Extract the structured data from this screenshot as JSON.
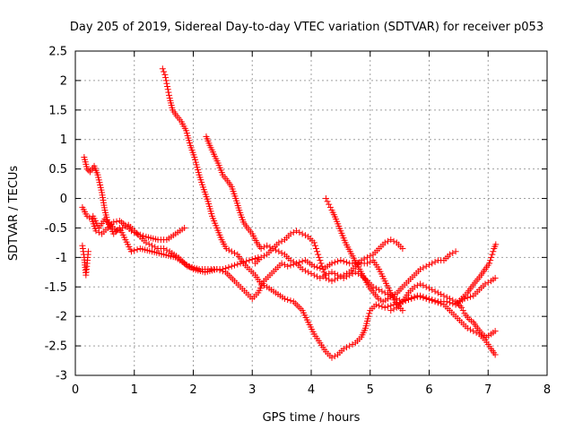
{
  "chart_data": {
    "type": "scatter",
    "title": "Day 205 of 2019, Sidereal Day-to-day VTEC variation (SDTVAR) for receiver p053",
    "xlabel": "GPS time / hours",
    "ylabel": "SDTVAR / TECUs",
    "xlim": [
      0,
      8
    ],
    "ylim": [
      -3,
      2.5
    ],
    "xticks": [
      "0",
      "1",
      "2",
      "3",
      "4",
      "5",
      "6",
      "7",
      "8"
    ],
    "yticks": [
      "-3",
      "-2.5",
      "-2",
      "-1.5",
      "-1",
      "-0.5",
      "0",
      "0.5",
      "1",
      "1.5",
      "2",
      "2.5"
    ],
    "grid": true,
    "marker": "plus",
    "color": "#ff0000",
    "series": [
      {
        "name": "track-1",
        "points": [
          [
            0.12,
            -0.8
          ],
          [
            0.15,
            -1.0
          ],
          [
            0.18,
            -1.3
          ],
          [
            0.2,
            -1.1
          ],
          [
            0.22,
            -0.9
          ]
        ]
      },
      {
        "name": "track-2",
        "points": [
          [
            0.15,
            0.7
          ],
          [
            0.2,
            0.5
          ],
          [
            0.25,
            0.45
          ],
          [
            0.32,
            0.55
          ],
          [
            0.38,
            0.4
          ],
          [
            0.45,
            0.1
          ],
          [
            0.5,
            -0.2
          ],
          [
            0.55,
            -0.4
          ],
          [
            0.65,
            -0.6
          ],
          [
            0.75,
            -0.5
          ],
          [
            0.85,
            -0.7
          ],
          [
            0.95,
            -0.9
          ],
          [
            1.1,
            -0.85
          ],
          [
            1.3,
            -0.9
          ],
          [
            1.5,
            -0.95
          ],
          [
            1.7,
            -1.0
          ],
          [
            1.85,
            -1.1
          ],
          [
            2.0,
            -1.2
          ],
          [
            2.2,
            -1.25
          ],
          [
            2.4,
            -1.2
          ],
          [
            2.55,
            -1.25
          ],
          [
            2.7,
            -1.4
          ],
          [
            2.8,
            -1.5
          ],
          [
            2.9,
            -1.6
          ],
          [
            3.0,
            -1.7
          ],
          [
            3.1,
            -1.6
          ],
          [
            3.2,
            -1.4
          ],
          [
            3.3,
            -1.3
          ],
          [
            3.4,
            -1.2
          ],
          [
            3.5,
            -1.1
          ],
          [
            3.6,
            -1.15
          ],
          [
            3.75,
            -1.1
          ],
          [
            3.9,
            -1.05
          ],
          [
            4.05,
            -1.15
          ],
          [
            4.2,
            -1.2
          ],
          [
            4.35,
            -1.1
          ],
          [
            4.5,
            -1.05
          ],
          [
            4.65,
            -1.1
          ],
          [
            4.8,
            -1.1
          ],
          [
            4.95,
            -1.1
          ],
          [
            5.05,
            -1.05
          ],
          [
            5.15,
            -1.2
          ],
          [
            5.25,
            -1.4
          ],
          [
            5.35,
            -1.6
          ],
          [
            5.45,
            -1.8
          ],
          [
            5.55,
            -1.9
          ]
        ]
      },
      {
        "name": "track-3",
        "points": [
          [
            0.12,
            -0.15
          ],
          [
            0.2,
            -0.3
          ],
          [
            0.28,
            -0.35
          ],
          [
            0.35,
            -0.55
          ],
          [
            0.45,
            -0.6
          ],
          [
            0.55,
            -0.5
          ],
          [
            0.65,
            -0.4
          ],
          [
            0.75,
            -0.38
          ],
          [
            0.85,
            -0.45
          ],
          [
            0.95,
            -0.55
          ],
          [
            1.05,
            -0.6
          ],
          [
            1.2,
            -0.65
          ],
          [
            1.4,
            -0.7
          ],
          [
            1.55,
            -0.7
          ],
          [
            1.7,
            -0.6
          ],
          [
            1.85,
            -0.5
          ]
        ]
      },
      {
        "name": "track-4",
        "points": [
          [
            0.3,
            -0.3
          ],
          [
            0.4,
            -0.5
          ],
          [
            0.5,
            -0.35
          ],
          [
            0.6,
            -0.45
          ],
          [
            0.7,
            -0.55
          ],
          [
            0.8,
            -0.5
          ],
          [
            0.9,
            -0.45
          ],
          [
            1.0,
            -0.55
          ],
          [
            1.1,
            -0.65
          ],
          [
            1.2,
            -0.75
          ],
          [
            1.3,
            -0.8
          ],
          [
            1.4,
            -0.85
          ],
          [
            1.5,
            -0.85
          ],
          [
            1.6,
            -0.9
          ],
          [
            1.75,
            -1.0
          ],
          [
            1.9,
            -1.15
          ],
          [
            2.1,
            -1.2
          ],
          [
            2.3,
            -1.2
          ],
          [
            2.5,
            -1.2
          ],
          [
            2.65,
            -1.15
          ],
          [
            2.8,
            -1.1
          ],
          [
            2.95,
            -1.05
          ],
          [
            3.1,
            -1.0
          ]
        ]
      },
      {
        "name": "track-5",
        "points": [
          [
            1.48,
            2.2
          ],
          [
            1.52,
            2.1
          ],
          [
            1.56,
            1.9
          ],
          [
            1.6,
            1.7
          ],
          [
            1.65,
            1.5
          ],
          [
            1.72,
            1.4
          ],
          [
            1.8,
            1.3
          ],
          [
            1.88,
            1.15
          ],
          [
            1.95,
            0.9
          ],
          [
            2.02,
            0.7
          ],
          [
            2.1,
            0.4
          ],
          [
            2.18,
            0.15
          ],
          [
            2.25,
            -0.05
          ],
          [
            2.32,
            -0.3
          ],
          [
            2.4,
            -0.5
          ],
          [
            2.48,
            -0.7
          ],
          [
            2.56,
            -0.85
          ],
          [
            2.65,
            -0.9
          ],
          [
            2.75,
            -0.95
          ],
          [
            2.85,
            -1.1
          ],
          [
            2.95,
            -1.2
          ],
          [
            3.05,
            -1.3
          ],
          [
            3.15,
            -1.45
          ],
          [
            3.25,
            -1.5
          ],
          [
            3.4,
            -1.6
          ],
          [
            3.55,
            -1.7
          ],
          [
            3.7,
            -1.75
          ],
          [
            3.85,
            -1.9
          ],
          [
            3.95,
            -2.1
          ],
          [
            4.05,
            -2.3
          ],
          [
            4.15,
            -2.45
          ],
          [
            4.25,
            -2.6
          ],
          [
            4.35,
            -2.7
          ],
          [
            4.45,
            -2.65
          ],
          [
            4.55,
            -2.55
          ],
          [
            4.65,
            -2.5
          ],
          [
            4.75,
            -2.45
          ],
          [
            4.85,
            -2.35
          ],
          [
            4.92,
            -2.2
          ],
          [
            4.97,
            -2.0
          ],
          [
            5.0,
            -1.9
          ],
          [
            5.1,
            -1.8
          ],
          [
            5.25,
            -1.85
          ],
          [
            5.4,
            -1.8
          ],
          [
            5.55,
            -1.75
          ],
          [
            5.7,
            -1.7
          ],
          [
            5.85,
            -1.65
          ],
          [
            6.0,
            -1.7
          ],
          [
            6.15,
            -1.75
          ],
          [
            6.3,
            -1.75
          ],
          [
            6.45,
            -1.8
          ],
          [
            6.6,
            -1.7
          ],
          [
            6.75,
            -1.65
          ],
          [
            6.85,
            -1.55
          ],
          [
            6.95,
            -1.45
          ],
          [
            7.05,
            -1.4
          ],
          [
            7.12,
            -1.35
          ]
        ]
      },
      {
        "name": "track-6",
        "points": [
          [
            2.22,
            1.05
          ],
          [
            2.28,
            0.9
          ],
          [
            2.35,
            0.75
          ],
          [
            2.42,
            0.6
          ],
          [
            2.5,
            0.4
          ],
          [
            2.58,
            0.3
          ],
          [
            2.65,
            0.2
          ],
          [
            2.72,
            0.0
          ],
          [
            2.78,
            -0.2
          ],
          [
            2.85,
            -0.4
          ],
          [
            2.92,
            -0.5
          ],
          [
            3.0,
            -0.6
          ],
          [
            3.08,
            -0.75
          ],
          [
            3.15,
            -0.85
          ],
          [
            3.25,
            -0.8
          ],
          [
            3.35,
            -0.85
          ],
          [
            3.45,
            -0.9
          ],
          [
            3.55,
            -0.95
          ],
          [
            3.65,
            -1.05
          ],
          [
            3.75,
            -1.1
          ],
          [
            3.85,
            -1.2
          ],
          [
            3.95,
            -1.25
          ],
          [
            4.05,
            -1.3
          ],
          [
            4.15,
            -1.35
          ],
          [
            4.25,
            -1.3
          ],
          [
            4.35,
            -1.25
          ],
          [
            4.45,
            -1.3
          ],
          [
            4.55,
            -1.35
          ],
          [
            4.65,
            -1.3
          ],
          [
            4.75,
            -1.25
          ],
          [
            4.85,
            -1.3
          ],
          [
            4.95,
            -1.4
          ],
          [
            5.05,
            -1.5
          ],
          [
            5.15,
            -1.55
          ],
          [
            5.25,
            -1.6
          ],
          [
            5.35,
            -1.65
          ],
          [
            5.45,
            -1.7
          ],
          [
            5.55,
            -1.75
          ],
          [
            5.65,
            -1.7
          ],
          [
            5.8,
            -1.65
          ],
          [
            5.95,
            -1.7
          ],
          [
            6.1,
            -1.75
          ],
          [
            6.25,
            -1.8
          ],
          [
            6.35,
            -1.9
          ],
          [
            6.45,
            -2.0
          ],
          [
            6.55,
            -2.1
          ],
          [
            6.65,
            -2.2
          ],
          [
            6.75,
            -2.25
          ],
          [
            6.85,
            -2.3
          ],
          [
            6.95,
            -2.4
          ],
          [
            7.05,
            -2.55
          ],
          [
            7.12,
            -2.65
          ]
        ]
      },
      {
        "name": "track-7",
        "points": [
          [
            3.05,
            -1.1
          ],
          [
            3.15,
            -1.0
          ],
          [
            3.25,
            -0.95
          ],
          [
            3.35,
            -0.85
          ],
          [
            3.45,
            -0.75
          ],
          [
            3.55,
            -0.7
          ],
          [
            3.65,
            -0.6
          ],
          [
            3.75,
            -0.55
          ],
          [
            3.85,
            -0.6
          ],
          [
            3.95,
            -0.65
          ],
          [
            4.05,
            -0.75
          ],
          [
            4.1,
            -0.9
          ],
          [
            4.15,
            -1.05
          ],
          [
            4.2,
            -1.2
          ],
          [
            4.25,
            -1.35
          ],
          [
            4.35,
            -1.4
          ],
          [
            4.45,
            -1.35
          ],
          [
            4.55,
            -1.3
          ],
          [
            4.65,
            -1.25
          ],
          [
            4.75,
            -1.15
          ],
          [
            4.85,
            -1.05
          ],
          [
            4.95,
            -1.0
          ],
          [
            5.05,
            -0.95
          ],
          [
            5.15,
            -0.85
          ],
          [
            5.25,
            -0.75
          ],
          [
            5.35,
            -0.7
          ],
          [
            5.45,
            -0.75
          ],
          [
            5.55,
            -0.85
          ]
        ]
      },
      {
        "name": "track-8",
        "points": [
          [
            4.25,
            0.0
          ],
          [
            4.3,
            -0.1
          ],
          [
            4.35,
            -0.2
          ],
          [
            4.42,
            -0.35
          ],
          [
            4.5,
            -0.55
          ],
          [
            4.58,
            -0.75
          ],
          [
            4.66,
            -0.9
          ],
          [
            4.74,
            -1.05
          ],
          [
            4.82,
            -1.2
          ],
          [
            4.9,
            -1.35
          ],
          [
            4.98,
            -1.5
          ],
          [
            5.06,
            -1.6
          ],
          [
            5.14,
            -1.7
          ],
          [
            5.22,
            -1.75
          ],
          [
            5.3,
            -1.7
          ],
          [
            5.38,
            -1.65
          ],
          [
            5.46,
            -1.6
          ],
          [
            5.55,
            -1.5
          ],
          [
            5.65,
            -1.4
          ],
          [
            5.75,
            -1.3
          ],
          [
            5.85,
            -1.2
          ],
          [
            5.95,
            -1.15
          ],
          [
            6.05,
            -1.1
          ],
          [
            6.15,
            -1.05
          ],
          [
            6.25,
            -1.05
          ],
          [
            6.35,
            -0.95
          ],
          [
            6.45,
            -0.9
          ]
        ]
      },
      {
        "name": "track-9",
        "points": [
          [
            5.35,
            -1.9
          ],
          [
            5.45,
            -1.85
          ],
          [
            5.55,
            -1.75
          ],
          [
            5.65,
            -1.6
          ],
          [
            5.75,
            -1.5
          ],
          [
            5.85,
            -1.45
          ],
          [
            5.95,
            -1.5
          ],
          [
            6.05,
            -1.55
          ],
          [
            6.15,
            -1.6
          ],
          [
            6.25,
            -1.65
          ],
          [
            6.35,
            -1.7
          ],
          [
            6.45,
            -1.75
          ],
          [
            6.5,
            -1.8
          ],
          [
            6.55,
            -1.85
          ],
          [
            6.6,
            -1.95
          ],
          [
            6.68,
            -2.05
          ],
          [
            6.75,
            -2.1
          ],
          [
            6.82,
            -2.2
          ],
          [
            6.9,
            -2.3
          ],
          [
            6.97,
            -2.35
          ],
          [
            7.05,
            -2.3
          ],
          [
            7.12,
            -2.25
          ]
        ]
      },
      {
        "name": "track-10",
        "points": [
          [
            6.45,
            -1.8
          ],
          [
            6.55,
            -1.7
          ],
          [
            6.65,
            -1.6
          ],
          [
            6.72,
            -1.5
          ],
          [
            6.8,
            -1.4
          ],
          [
            6.88,
            -1.3
          ],
          [
            6.95,
            -1.2
          ],
          [
            7.02,
            -1.1
          ],
          [
            7.07,
            -0.95
          ],
          [
            7.1,
            -0.85
          ],
          [
            7.13,
            -0.78
          ]
        ]
      }
    ]
  }
}
